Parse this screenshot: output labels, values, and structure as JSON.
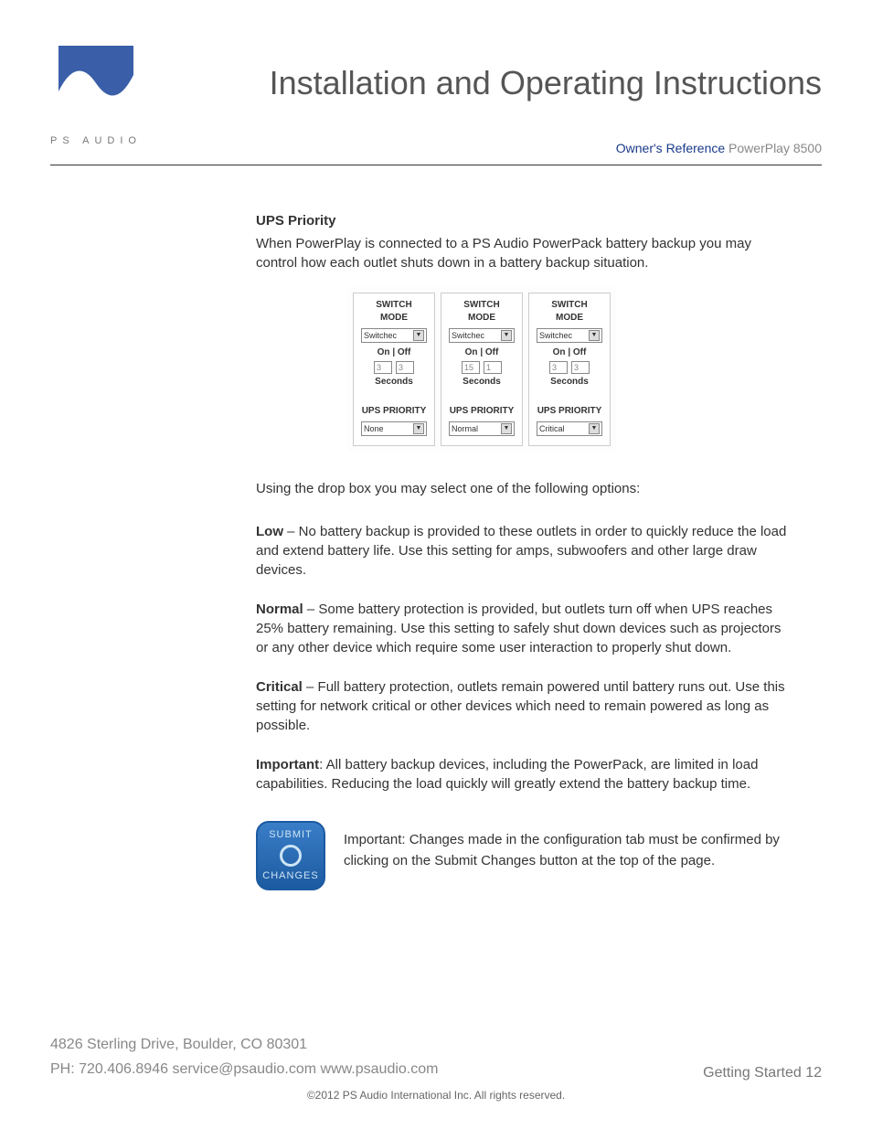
{
  "header": {
    "brand_text": "PS AUDIO",
    "reg_mark": "®",
    "title": "Installation and Operating Instructions",
    "ref_label": "Owner's Reference",
    "ref_model": "PowerPlay 8500",
    "logo_bg_color": "#3a5ea8",
    "logo_wave_color": "#ffffff"
  },
  "body": {
    "heading": "UPS Priority",
    "intro": "When PowerPlay is connected to a PS Audio PowerPack battery backup you may control how each outlet shuts down in a battery backup situation.",
    "figure": {
      "columns": [
        {
          "switch_label": "SWITCH MODE",
          "switch_value": "Switchec",
          "onoff_label": "On | Off",
          "on_seconds": "3",
          "off_seconds": "3",
          "seconds_label": "Seconds",
          "ups_label": "UPS PRIORITY",
          "ups_value": "None"
        },
        {
          "switch_label": "SWITCH MODE",
          "switch_value": "Switchec",
          "onoff_label": "On | Off",
          "on_seconds": "15",
          "off_seconds": "1",
          "seconds_label": "Seconds",
          "ups_label": "UPS PRIORITY",
          "ups_value": "Normal"
        },
        {
          "switch_label": "SWITCH MODE",
          "switch_value": "Switchec",
          "onoff_label": "On | Off",
          "on_seconds": "3",
          "off_seconds": "3",
          "seconds_label": "Seconds",
          "ups_label": "UPS PRIORITY",
          "ups_value": "Critical"
        }
      ]
    },
    "options_intro": "Using the drop box you may select one of the following options:",
    "options": [
      {
        "name": "Low",
        "desc": " – No battery backup is provided to these outlets in order to quickly reduce the load and extend battery life. Use this setting for amps, subwoofers and other large draw devices."
      },
      {
        "name": "Normal",
        "desc": " – Some battery protection is provided, but outlets turn off when UPS reaches 25% battery remaining. Use this setting to safely shut down devices such as projectors or any other device which require some user interaction to properly shut down."
      },
      {
        "name": "Critical",
        "desc": " – Full battery protection, outlets remain powered until battery runs out. Use this setting for network critical or other devices which need to remain powered as long as possible."
      }
    ],
    "important_label": "Important",
    "important_text": ": All battery backup devices, including the PowerPack, are limited in load capabilities. Reducing the load quickly will greatly extend the battery backup time.",
    "submit": {
      "top": "SUBMIT",
      "bottom": "CHANGES",
      "note": "Important: Changes made in the configuration tab must be confirmed by clicking on the Submit Changes button at the top of the page."
    }
  },
  "footer": {
    "address": "4826 Sterling Drive, Boulder, CO 80301",
    "contact": "PH: 720.406.8946 service@psaudio.com www.psaudio.com",
    "page_label": "Getting Started 12",
    "copyright": "©2012 PS Audio International Inc.  All rights reserved."
  }
}
